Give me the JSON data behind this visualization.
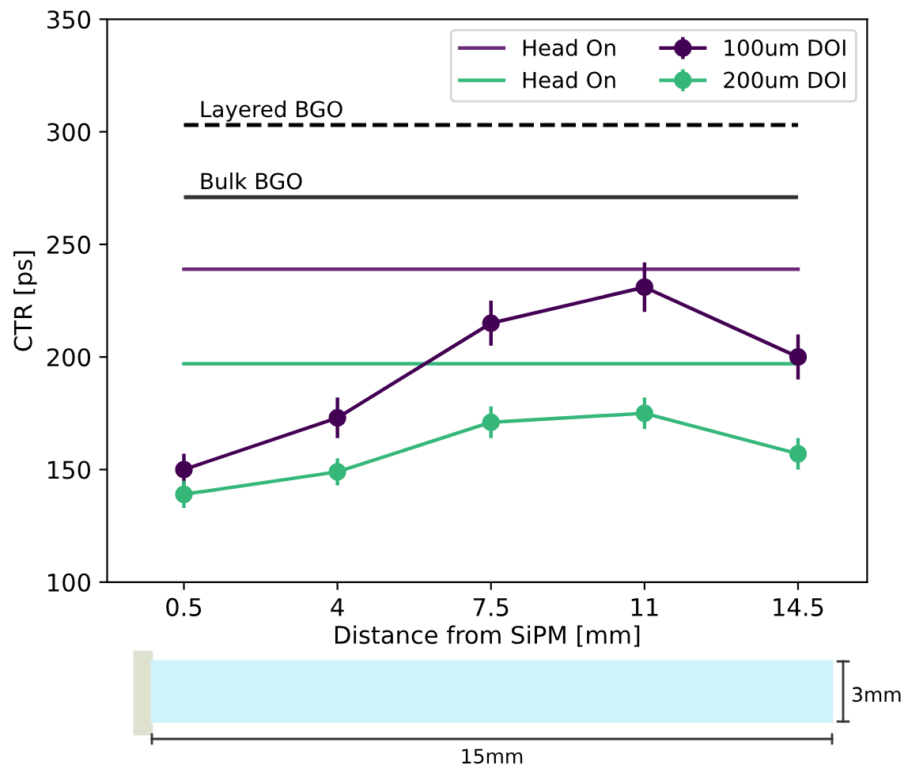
{
  "chart_data": {
    "type": "line",
    "xlabel": "Distance from SiPM [mm]",
    "ylabel": "CTR [ps]",
    "categories": [
      "0.5",
      "4",
      "7.5",
      "11",
      "14.5"
    ],
    "series": [
      {
        "name": "Head On",
        "color": "#6b2a78",
        "values": [
          239,
          239,
          239,
          239,
          239
        ],
        "marker": "none"
      },
      {
        "name": "Head On",
        "color": "#35b779",
        "values": [
          197,
          197,
          197,
          197,
          197
        ],
        "marker": "none"
      },
      {
        "name": "100um DOI",
        "color": "#440154",
        "values": [
          150,
          173,
          215,
          231,
          200
        ],
        "errors": [
          7,
          9,
          10,
          11,
          10
        ],
        "marker": "circle"
      },
      {
        "name": "200um DOI",
        "color": "#35b779",
        "values": [
          139,
          149,
          171,
          175,
          157
        ],
        "errors": [
          6,
          6,
          7,
          7,
          7
        ],
        "marker": "circle"
      }
    ],
    "ref_lines": [
      {
        "axis": "y",
        "value": 303,
        "label": "Layered BGO",
        "color": "#000000",
        "line_style": "dashed"
      },
      {
        "axis": "y",
        "value": 271,
        "label": "Bulk BGO",
        "color": "#333333",
        "line_style": "solid"
      }
    ],
    "ylim": [
      100,
      350
    ],
    "yticks": [
      100,
      150,
      200,
      250,
      300,
      350
    ],
    "grid": false,
    "legend": "top right",
    "annotations": [
      "3mm",
      "15mm"
    ]
  }
}
